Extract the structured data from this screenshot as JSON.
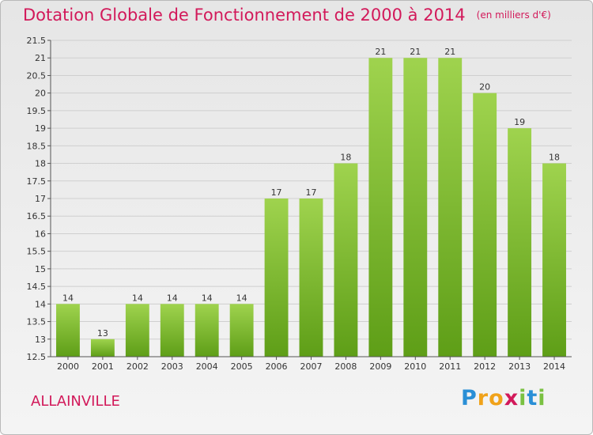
{
  "title": "Dotation Globale de Fonctionnement de 2000 à 2014",
  "unit_note": "(en milliers d'€)",
  "commune": "ALLAINVILLE",
  "logo": {
    "text": "Proxiti",
    "letters": [
      {
        "ch": "P",
        "color": "#2a8fd6"
      },
      {
        "ch": "r",
        "color": "#f0a21a"
      },
      {
        "ch": "o",
        "color": "#f0a21a"
      },
      {
        "ch": "x",
        "color": "#d2195a"
      },
      {
        "ch": "i",
        "color": "#7ac142"
      },
      {
        "ch": "t",
        "color": "#2a8fd6"
      },
      {
        "ch": "i",
        "color": "#7ac142"
      }
    ]
  },
  "colors": {
    "title": "#d2195a",
    "bar_top": "#9fd34e",
    "bar_bottom": "#5e9e17",
    "grid": "#cfcfcf",
    "axis": "#555555"
  },
  "chart_data": {
    "type": "bar",
    "categories": [
      "2000",
      "2001",
      "2002",
      "2003",
      "2004",
      "2005",
      "2006",
      "2007",
      "2008",
      "2009",
      "2010",
      "2011",
      "2012",
      "2013",
      "2014"
    ],
    "values": [
      14,
      13,
      14,
      14,
      14,
      14,
      17,
      17,
      18,
      21,
      21,
      21,
      20,
      19,
      18
    ],
    "data_labels": [
      "14",
      "13",
      "14",
      "14",
      "14",
      "14",
      "17",
      "17",
      "18",
      "21",
      "21",
      "21",
      "20",
      "19",
      "18"
    ],
    "ylim": [
      12.5,
      21.5
    ],
    "yticks": [
      12.5,
      13,
      13.5,
      14,
      14.5,
      15,
      15.5,
      16,
      16.5,
      17,
      17.5,
      18,
      18.5,
      19,
      19.5,
      20,
      20.5,
      21,
      21.5
    ],
    "ytick_labels": [
      "12.5",
      "13",
      "13.5",
      "14",
      "14.5",
      "15",
      "15.5",
      "16",
      "16.5",
      "17",
      "17.5",
      "18",
      "18.5",
      "19",
      "19.5",
      "20",
      "20.5",
      "21",
      "21.5"
    ],
    "grid": true,
    "legend": "none"
  }
}
